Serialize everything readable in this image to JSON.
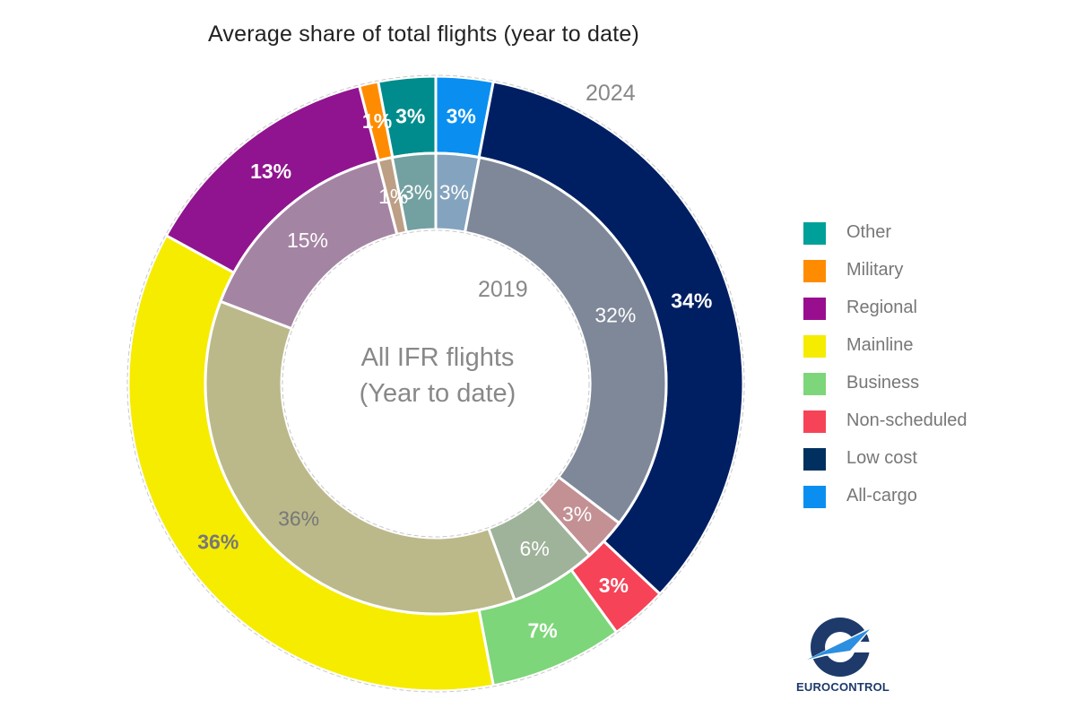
{
  "chart_data": {
    "type": "pie",
    "subtype": "nested-donut",
    "title": "Average share of total flights (year to date)",
    "center_label": [
      "All IFR flights",
      "(Year to date)"
    ],
    "categories": [
      "All-cargo",
      "Low cost",
      "Non-scheduled",
      "Business",
      "Mainline",
      "Regional",
      "Military",
      "Other"
    ],
    "series": [
      {
        "name": "2024",
        "ring": "outer",
        "values": [
          3,
          34,
          3,
          7,
          36,
          13,
          1,
          3
        ],
        "labels": [
          "3%",
          "34%",
          "3%",
          "7%",
          "36%",
          "13%",
          "1%",
          "3%"
        ],
        "colors": [
          "#0A8FF0",
          "#001F63",
          "#F64358",
          "#7DD679",
          "#F6EC00",
          "#90148F",
          "#FF8C00",
          "#008C8C"
        ],
        "label_colors": [
          "#ffffff",
          "#ffffff",
          "#ffffff",
          "#ffffff",
          "#777777",
          "#ffffff",
          "#ffffff",
          "#ffffff"
        ]
      },
      {
        "name": "2019",
        "ring": "inner",
        "values": [
          3,
          32,
          3,
          6,
          36,
          15,
          1,
          3
        ],
        "labels": [
          "3%",
          "32%",
          "3%",
          "6%",
          "36%",
          "15%",
          "1%",
          "3%"
        ],
        "colors": [
          "#84A3BE",
          "#7F8899",
          "#C39094",
          "#9FB29A",
          "#BBB98A",
          "#A484A3",
          "#BC9F85",
          "#73A0A0"
        ],
        "label_colors": [
          "#ffffff",
          "#ffffff",
          "#ffffff",
          "#ffffff",
          "#777777",
          "#ffffff",
          "#ffffff",
          "#ffffff"
        ]
      }
    ],
    "legend": {
      "position": "right",
      "items": [
        {
          "label": "Other",
          "color": "#00A09A"
        },
        {
          "label": "Military",
          "color": "#FF8C00"
        },
        {
          "label": "Regional",
          "color": "#990E8E"
        },
        {
          "label": "Mainline",
          "color": "#F6EC00"
        },
        {
          "label": "Business",
          "color": "#7DD679"
        },
        {
          "label": "Non-scheduled",
          "color": "#F64358"
        },
        {
          "label": "Low cost",
          "color": "#00305F"
        },
        {
          "label": "All-cargo",
          "color": "#0A8FF0"
        }
      ]
    }
  },
  "branding": {
    "logo_text": "EUROCONTROL"
  }
}
